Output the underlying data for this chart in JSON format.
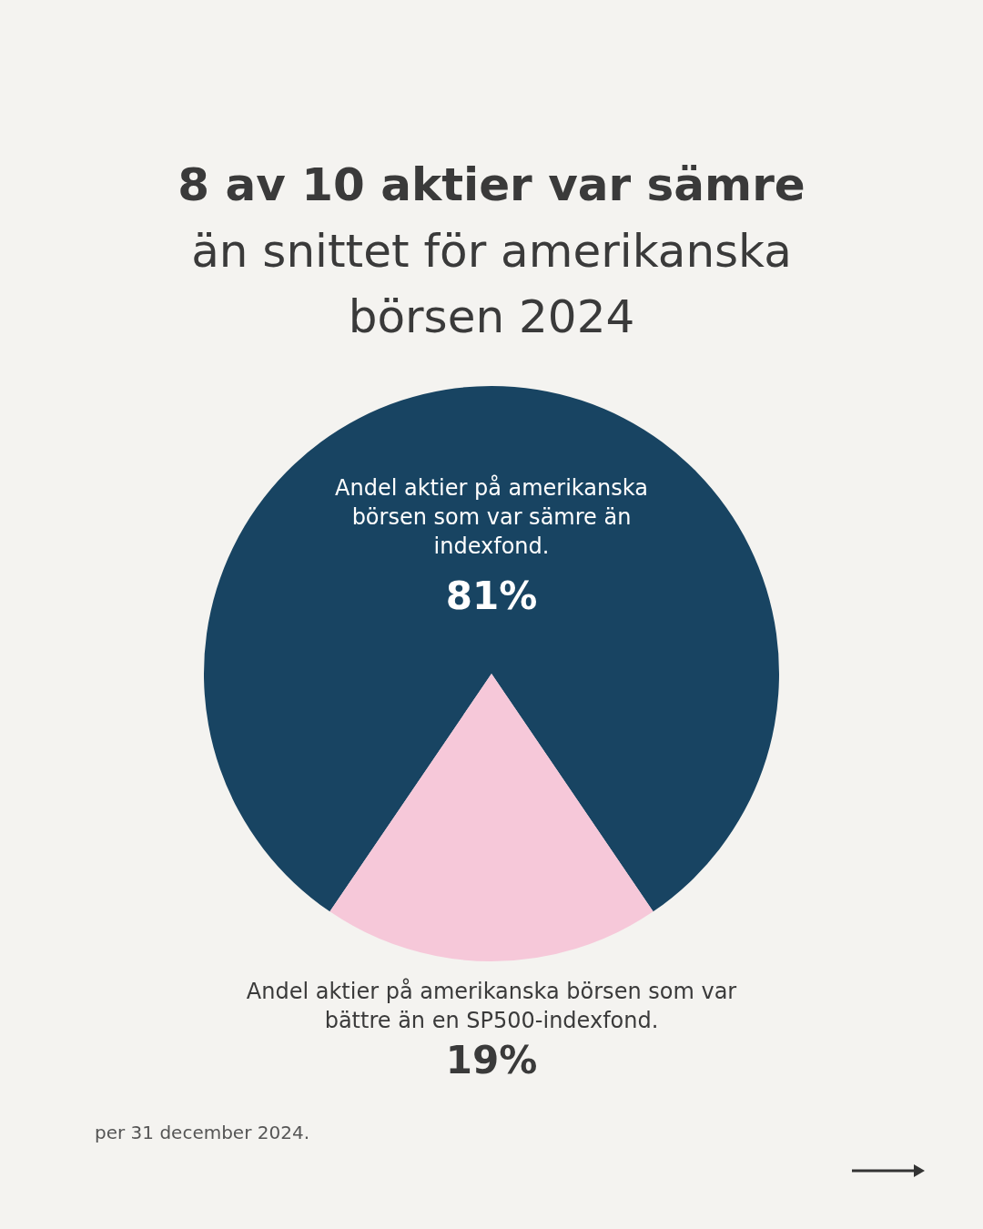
{
  "chart_data": {
    "type": "pie",
    "title": "8 av 10 aktier var sämre",
    "subtitle": "än snittet för amerikanska börsen 2024",
    "categories": [
      "Andel aktier på amerikanska börsen som var sämre än indexfond.",
      "Andel aktier på amerikanska börsen som var bättre än en SP500-indexfond."
    ],
    "values": [
      81,
      19
    ],
    "colors": [
      "#184462",
      "#f6c8d9"
    ],
    "value_labels": [
      "81%",
      "19%"
    ],
    "annotations": [
      "per 31 december 2024."
    ]
  }
}
